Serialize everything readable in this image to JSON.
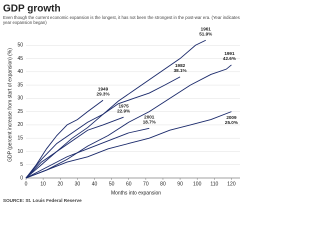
{
  "chart_data": {
    "type": "line",
    "title": "GDP growth",
    "subtitle": "Even though the current economic expansion is the longest, it has not been the strongest in the post-war era. (Year indicates year expansion began)",
    "x_label": "Months into expansion",
    "y_label": "GDP (percent increase from start of expansion) (%)",
    "source": "SOURCE: St. Louis Federal Reserve",
    "color": "#1b2a6b",
    "grid": true,
    "xlim": [
      0,
      125
    ],
    "xticks": [
      0,
      10,
      20,
      30,
      40,
      50,
      60,
      70,
      80,
      90,
      100,
      110,
      120
    ],
    "ylim": [
      0,
      55
    ],
    "yticks": [
      0,
      5,
      10,
      15,
      20,
      25,
      30,
      35,
      40,
      45,
      50
    ],
    "series": [
      {
        "name": "1961",
        "x": [
          0,
          9,
          18,
          27,
          36,
          45,
          54,
          63,
          72,
          81,
          90,
          99,
          105
        ],
        "values": [
          0,
          5,
          10,
          15,
          19,
          24,
          29,
          33,
          37,
          41,
          45,
          50,
          51.9
        ],
        "value_labels": [
          null,
          null,
          null,
          null,
          null,
          null,
          null,
          null,
          null,
          null,
          null,
          null,
          "51.9%"
        ]
      },
      {
        "name": "1991",
        "x": [
          0,
          12,
          24,
          36,
          48,
          60,
          72,
          84,
          96,
          108,
          117,
          120
        ],
        "values": [
          0,
          3,
          7,
          12,
          16,
          21,
          25,
          30,
          35,
          39,
          41,
          42.6
        ],
        "value_labels": [
          null,
          null,
          null,
          null,
          null,
          null,
          null,
          null,
          null,
          null,
          null,
          "42.6%"
        ]
      },
      {
        "name": "1982",
        "x": [
          0,
          9,
          18,
          27,
          36,
          45,
          54,
          63,
          72,
          81,
          90
        ],
        "values": [
          0,
          7,
          13,
          17,
          21,
          24,
          28,
          30,
          32,
          35,
          38.1
        ],
        "value_labels": [
          null,
          null,
          null,
          null,
          null,
          null,
          null,
          null,
          null,
          null,
          "38.1%"
        ]
      },
      {
        "name": "1949",
        "x": [
          0,
          6,
          12,
          18,
          24,
          30,
          36,
          45
        ],
        "values": [
          0,
          5,
          11,
          16,
          20,
          22,
          25,
          29.3
        ],
        "value_labels": [
          null,
          null,
          null,
          null,
          null,
          null,
          null,
          "29.3%"
        ]
      },
      {
        "name": "1975",
        "x": [
          0,
          9,
          18,
          27,
          36,
          45,
          57
        ],
        "values": [
          0,
          6,
          10,
          14,
          18,
          20,
          22.9
        ],
        "value_labels": [
          null,
          null,
          null,
          null,
          null,
          null,
          "22.9%"
        ]
      },
      {
        "name": "2001",
        "x": [
          0,
          12,
          24,
          36,
          48,
          60,
          72
        ],
        "values": [
          0,
          4,
          8,
          11,
          14,
          17,
          18.7
        ],
        "value_labels": [
          null,
          null,
          null,
          null,
          null,
          null,
          "18.7%"
        ]
      },
      {
        "name": "2009",
        "x": [
          0,
          12,
          24,
          36,
          48,
          60,
          72,
          84,
          96,
          108,
          120
        ],
        "values": [
          0,
          3,
          6,
          8,
          11,
          13,
          15,
          18,
          20,
          22,
          25.0
        ],
        "value_labels": [
          null,
          null,
          null,
          null,
          null,
          null,
          null,
          null,
          null,
          null,
          "25.0%"
        ]
      }
    ]
  }
}
